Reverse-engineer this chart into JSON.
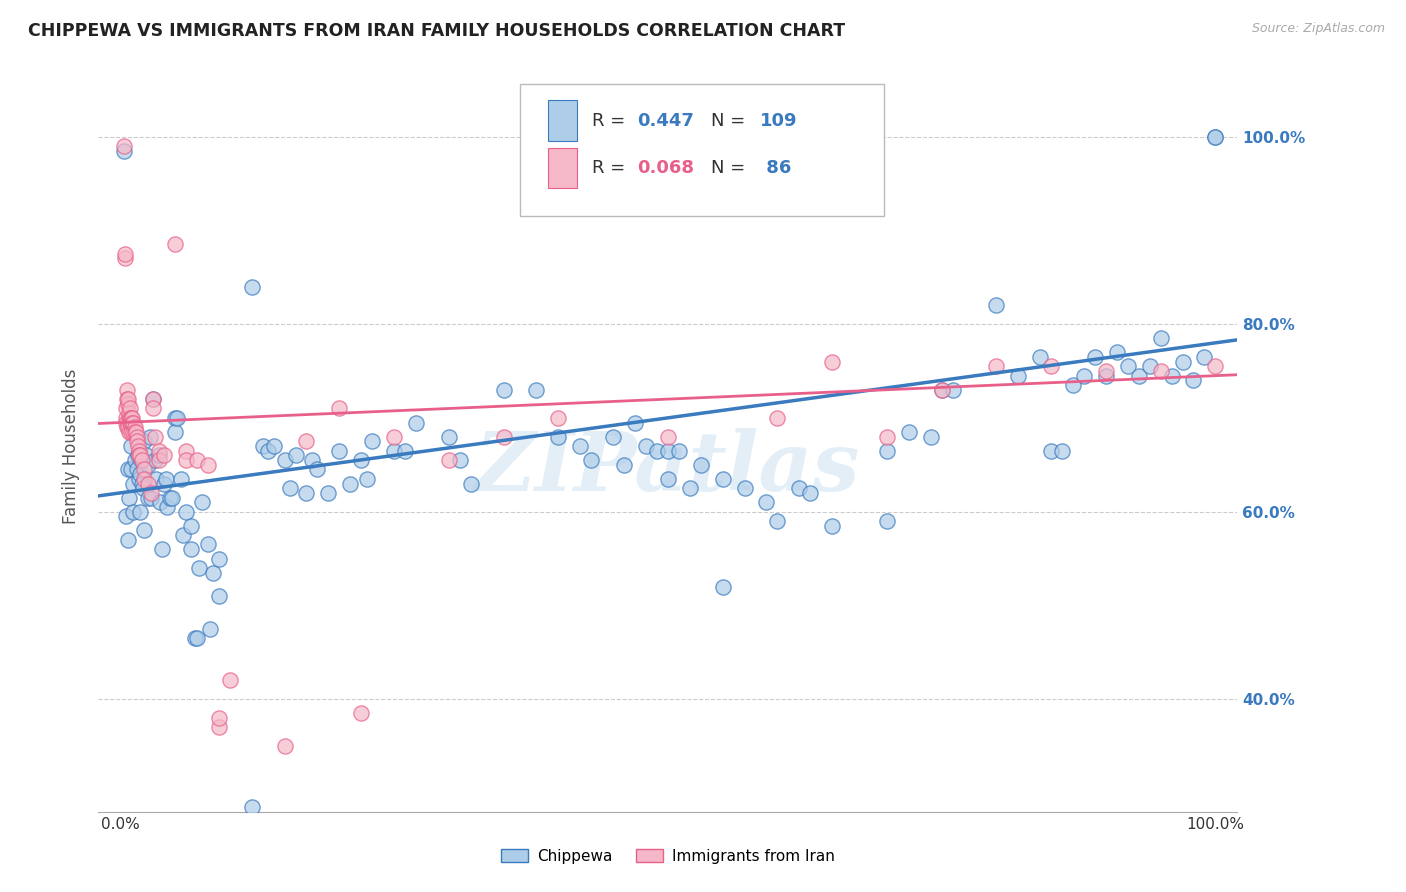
{
  "title": "CHIPPEWA VS IMMIGRANTS FROM IRAN FAMILY HOUSEHOLDS CORRELATION CHART",
  "source": "Source: ZipAtlas.com",
  "ylabel": "Family Households",
  "legend_labels": [
    "Chippewa",
    "Immigrants from Iran"
  ],
  "blue_R": "0.447",
  "blue_N": "109",
  "pink_R": "0.068",
  "pink_N": " 86",
  "blue_color": "#aecde8",
  "pink_color": "#f4b8c8",
  "blue_line_color": "#3a7abf",
  "pink_line_color": "#e8608a",
  "watermark": "ZIPatlas",
  "background_color": "#ffffff",
  "grid_color": "#cccccc",
  "y_tick_color": "#3a7abf",
  "xlim": [
    -0.02,
    1.02
  ],
  "ylim": [
    0.28,
    1.06
  ],
  "x_ticks": [
    0.0,
    1.0
  ],
  "x_tick_labels": [
    "0.0%",
    "100.0%"
  ],
  "y_ticks": [
    0.4,
    0.6,
    0.8,
    1.0
  ],
  "y_tick_labels": [
    "40.0%",
    "60.0%",
    "80.0%",
    "100.0%"
  ],
  "blue_scatter": [
    [
      0.003,
      0.985
    ],
    [
      0.005,
      0.595
    ],
    [
      0.007,
      0.57
    ],
    [
      0.007,
      0.645
    ],
    [
      0.008,
      0.615
    ],
    [
      0.01,
      0.645
    ],
    [
      0.01,
      0.67
    ],
    [
      0.012,
      0.63
    ],
    [
      0.012,
      0.6
    ],
    [
      0.013,
      0.655
    ],
    [
      0.015,
      0.645
    ],
    [
      0.016,
      0.66
    ],
    [
      0.017,
      0.635
    ],
    [
      0.018,
      0.64
    ],
    [
      0.018,
      0.6
    ],
    [
      0.019,
      0.655
    ],
    [
      0.02,
      0.63
    ],
    [
      0.021,
      0.625
    ],
    [
      0.022,
      0.58
    ],
    [
      0.022,
      0.675
    ],
    [
      0.023,
      0.66
    ],
    [
      0.025,
      0.615
    ],
    [
      0.025,
      0.65
    ],
    [
      0.027,
      0.68
    ],
    [
      0.028,
      0.615
    ],
    [
      0.03,
      0.72
    ],
    [
      0.032,
      0.655
    ],
    [
      0.033,
      0.635
    ],
    [
      0.035,
      0.66
    ],
    [
      0.036,
      0.61
    ],
    [
      0.038,
      0.56
    ],
    [
      0.04,
      0.63
    ],
    [
      0.042,
      0.635
    ],
    [
      0.043,
      0.605
    ],
    [
      0.045,
      0.615
    ],
    [
      0.047,
      0.615
    ],
    [
      0.05,
      0.7
    ],
    [
      0.05,
      0.685
    ],
    [
      0.052,
      0.7
    ],
    [
      0.055,
      0.635
    ],
    [
      0.057,
      0.575
    ],
    [
      0.06,
      0.6
    ],
    [
      0.065,
      0.56
    ],
    [
      0.065,
      0.585
    ],
    [
      0.068,
      0.465
    ],
    [
      0.07,
      0.465
    ],
    [
      0.072,
      0.54
    ],
    [
      0.075,
      0.61
    ],
    [
      0.08,
      0.565
    ],
    [
      0.082,
      0.475
    ],
    [
      0.085,
      0.535
    ],
    [
      0.09,
      0.55
    ],
    [
      0.09,
      0.51
    ],
    [
      0.12,
      0.84
    ],
    [
      0.12,
      0.285
    ],
    [
      0.13,
      0.67
    ],
    [
      0.135,
      0.665
    ],
    [
      0.14,
      0.67
    ],
    [
      0.15,
      0.655
    ],
    [
      0.155,
      0.625
    ],
    [
      0.16,
      0.66
    ],
    [
      0.17,
      0.62
    ],
    [
      0.175,
      0.655
    ],
    [
      0.18,
      0.645
    ],
    [
      0.19,
      0.62
    ],
    [
      0.2,
      0.665
    ],
    [
      0.21,
      0.63
    ],
    [
      0.22,
      0.655
    ],
    [
      0.225,
      0.635
    ],
    [
      0.23,
      0.675
    ],
    [
      0.25,
      0.665
    ],
    [
      0.26,
      0.665
    ],
    [
      0.27,
      0.695
    ],
    [
      0.3,
      0.68
    ],
    [
      0.31,
      0.655
    ],
    [
      0.32,
      0.63
    ],
    [
      0.35,
      0.73
    ],
    [
      0.38,
      0.73
    ],
    [
      0.4,
      0.68
    ],
    [
      0.42,
      0.67
    ],
    [
      0.43,
      0.655
    ],
    [
      0.45,
      0.68
    ],
    [
      0.46,
      0.65
    ],
    [
      0.47,
      0.695
    ],
    [
      0.48,
      0.67
    ],
    [
      0.49,
      0.665
    ],
    [
      0.5,
      0.665
    ],
    [
      0.5,
      0.635
    ],
    [
      0.51,
      0.665
    ],
    [
      0.52,
      0.625
    ],
    [
      0.53,
      0.65
    ],
    [
      0.55,
      0.52
    ],
    [
      0.55,
      0.635
    ],
    [
      0.57,
      0.625
    ],
    [
      0.59,
      0.61
    ],
    [
      0.6,
      0.59
    ],
    [
      0.62,
      0.625
    ],
    [
      0.63,
      0.62
    ],
    [
      0.65,
      0.585
    ],
    [
      0.7,
      0.59
    ],
    [
      0.7,
      0.665
    ],
    [
      0.72,
      0.685
    ],
    [
      0.74,
      0.68
    ],
    [
      0.75,
      0.73
    ],
    [
      0.76,
      0.73
    ],
    [
      0.8,
      0.82
    ],
    [
      0.82,
      0.745
    ],
    [
      0.84,
      0.765
    ],
    [
      0.85,
      0.665
    ],
    [
      0.86,
      0.665
    ],
    [
      0.87,
      0.735
    ],
    [
      0.88,
      0.745
    ],
    [
      0.89,
      0.765
    ],
    [
      0.9,
      0.745
    ],
    [
      0.91,
      0.77
    ],
    [
      0.92,
      0.755
    ],
    [
      0.93,
      0.745
    ],
    [
      0.94,
      0.755
    ],
    [
      0.95,
      0.785
    ],
    [
      0.96,
      0.745
    ],
    [
      0.97,
      0.76
    ],
    [
      0.98,
      0.74
    ],
    [
      0.99,
      0.765
    ],
    [
      1.0,
      1.0
    ],
    [
      1.0,
      1.0
    ]
  ],
  "pink_scatter": [
    [
      0.003,
      0.99
    ],
    [
      0.004,
      0.87
    ],
    [
      0.004,
      0.875
    ],
    [
      0.005,
      0.7
    ],
    [
      0.005,
      0.695
    ],
    [
      0.005,
      0.71
    ],
    [
      0.006,
      0.73
    ],
    [
      0.006,
      0.72
    ],
    [
      0.006,
      0.69
    ],
    [
      0.007,
      0.715
    ],
    [
      0.007,
      0.72
    ],
    [
      0.007,
      0.69
    ],
    [
      0.008,
      0.7
    ],
    [
      0.008,
      0.705
    ],
    [
      0.008,
      0.685
    ],
    [
      0.009,
      0.71
    ],
    [
      0.009,
      0.7
    ],
    [
      0.009,
      0.695
    ],
    [
      0.01,
      0.7
    ],
    [
      0.01,
      0.695
    ],
    [
      0.01,
      0.685
    ],
    [
      0.011,
      0.7
    ],
    [
      0.011,
      0.695
    ],
    [
      0.012,
      0.695
    ],
    [
      0.012,
      0.685
    ],
    [
      0.013,
      0.69
    ],
    [
      0.013,
      0.685
    ],
    [
      0.014,
      0.685
    ],
    [
      0.015,
      0.68
    ],
    [
      0.015,
      0.675
    ],
    [
      0.016,
      0.67
    ],
    [
      0.017,
      0.665
    ],
    [
      0.017,
      0.66
    ],
    [
      0.018,
      0.66
    ],
    [
      0.02,
      0.655
    ],
    [
      0.022,
      0.645
    ],
    [
      0.022,
      0.635
    ],
    [
      0.025,
      0.63
    ],
    [
      0.028,
      0.62
    ],
    [
      0.03,
      0.72
    ],
    [
      0.03,
      0.71
    ],
    [
      0.032,
      0.68
    ],
    [
      0.035,
      0.665
    ],
    [
      0.035,
      0.655
    ],
    [
      0.04,
      0.66
    ],
    [
      0.05,
      0.885
    ],
    [
      0.06,
      0.665
    ],
    [
      0.06,
      0.655
    ],
    [
      0.07,
      0.655
    ],
    [
      0.08,
      0.65
    ],
    [
      0.09,
      0.37
    ],
    [
      0.09,
      0.38
    ],
    [
      0.1,
      0.42
    ],
    [
      0.15,
      0.35
    ],
    [
      0.17,
      0.675
    ],
    [
      0.2,
      0.71
    ],
    [
      0.22,
      0.385
    ],
    [
      0.25,
      0.68
    ],
    [
      0.3,
      0.655
    ],
    [
      0.35,
      0.68
    ],
    [
      0.4,
      0.7
    ],
    [
      0.5,
      0.68
    ],
    [
      0.6,
      0.7
    ],
    [
      0.65,
      0.76
    ],
    [
      0.7,
      0.68
    ],
    [
      0.75,
      0.73
    ],
    [
      0.8,
      0.755
    ],
    [
      0.85,
      0.755
    ],
    [
      0.9,
      0.75
    ],
    [
      0.95,
      0.75
    ],
    [
      1.0,
      0.755
    ]
  ],
  "blue_reg": [
    0.0,
    0.62,
    1.0,
    0.78
  ],
  "pink_reg": [
    0.0,
    0.695,
    1.0,
    0.745
  ]
}
